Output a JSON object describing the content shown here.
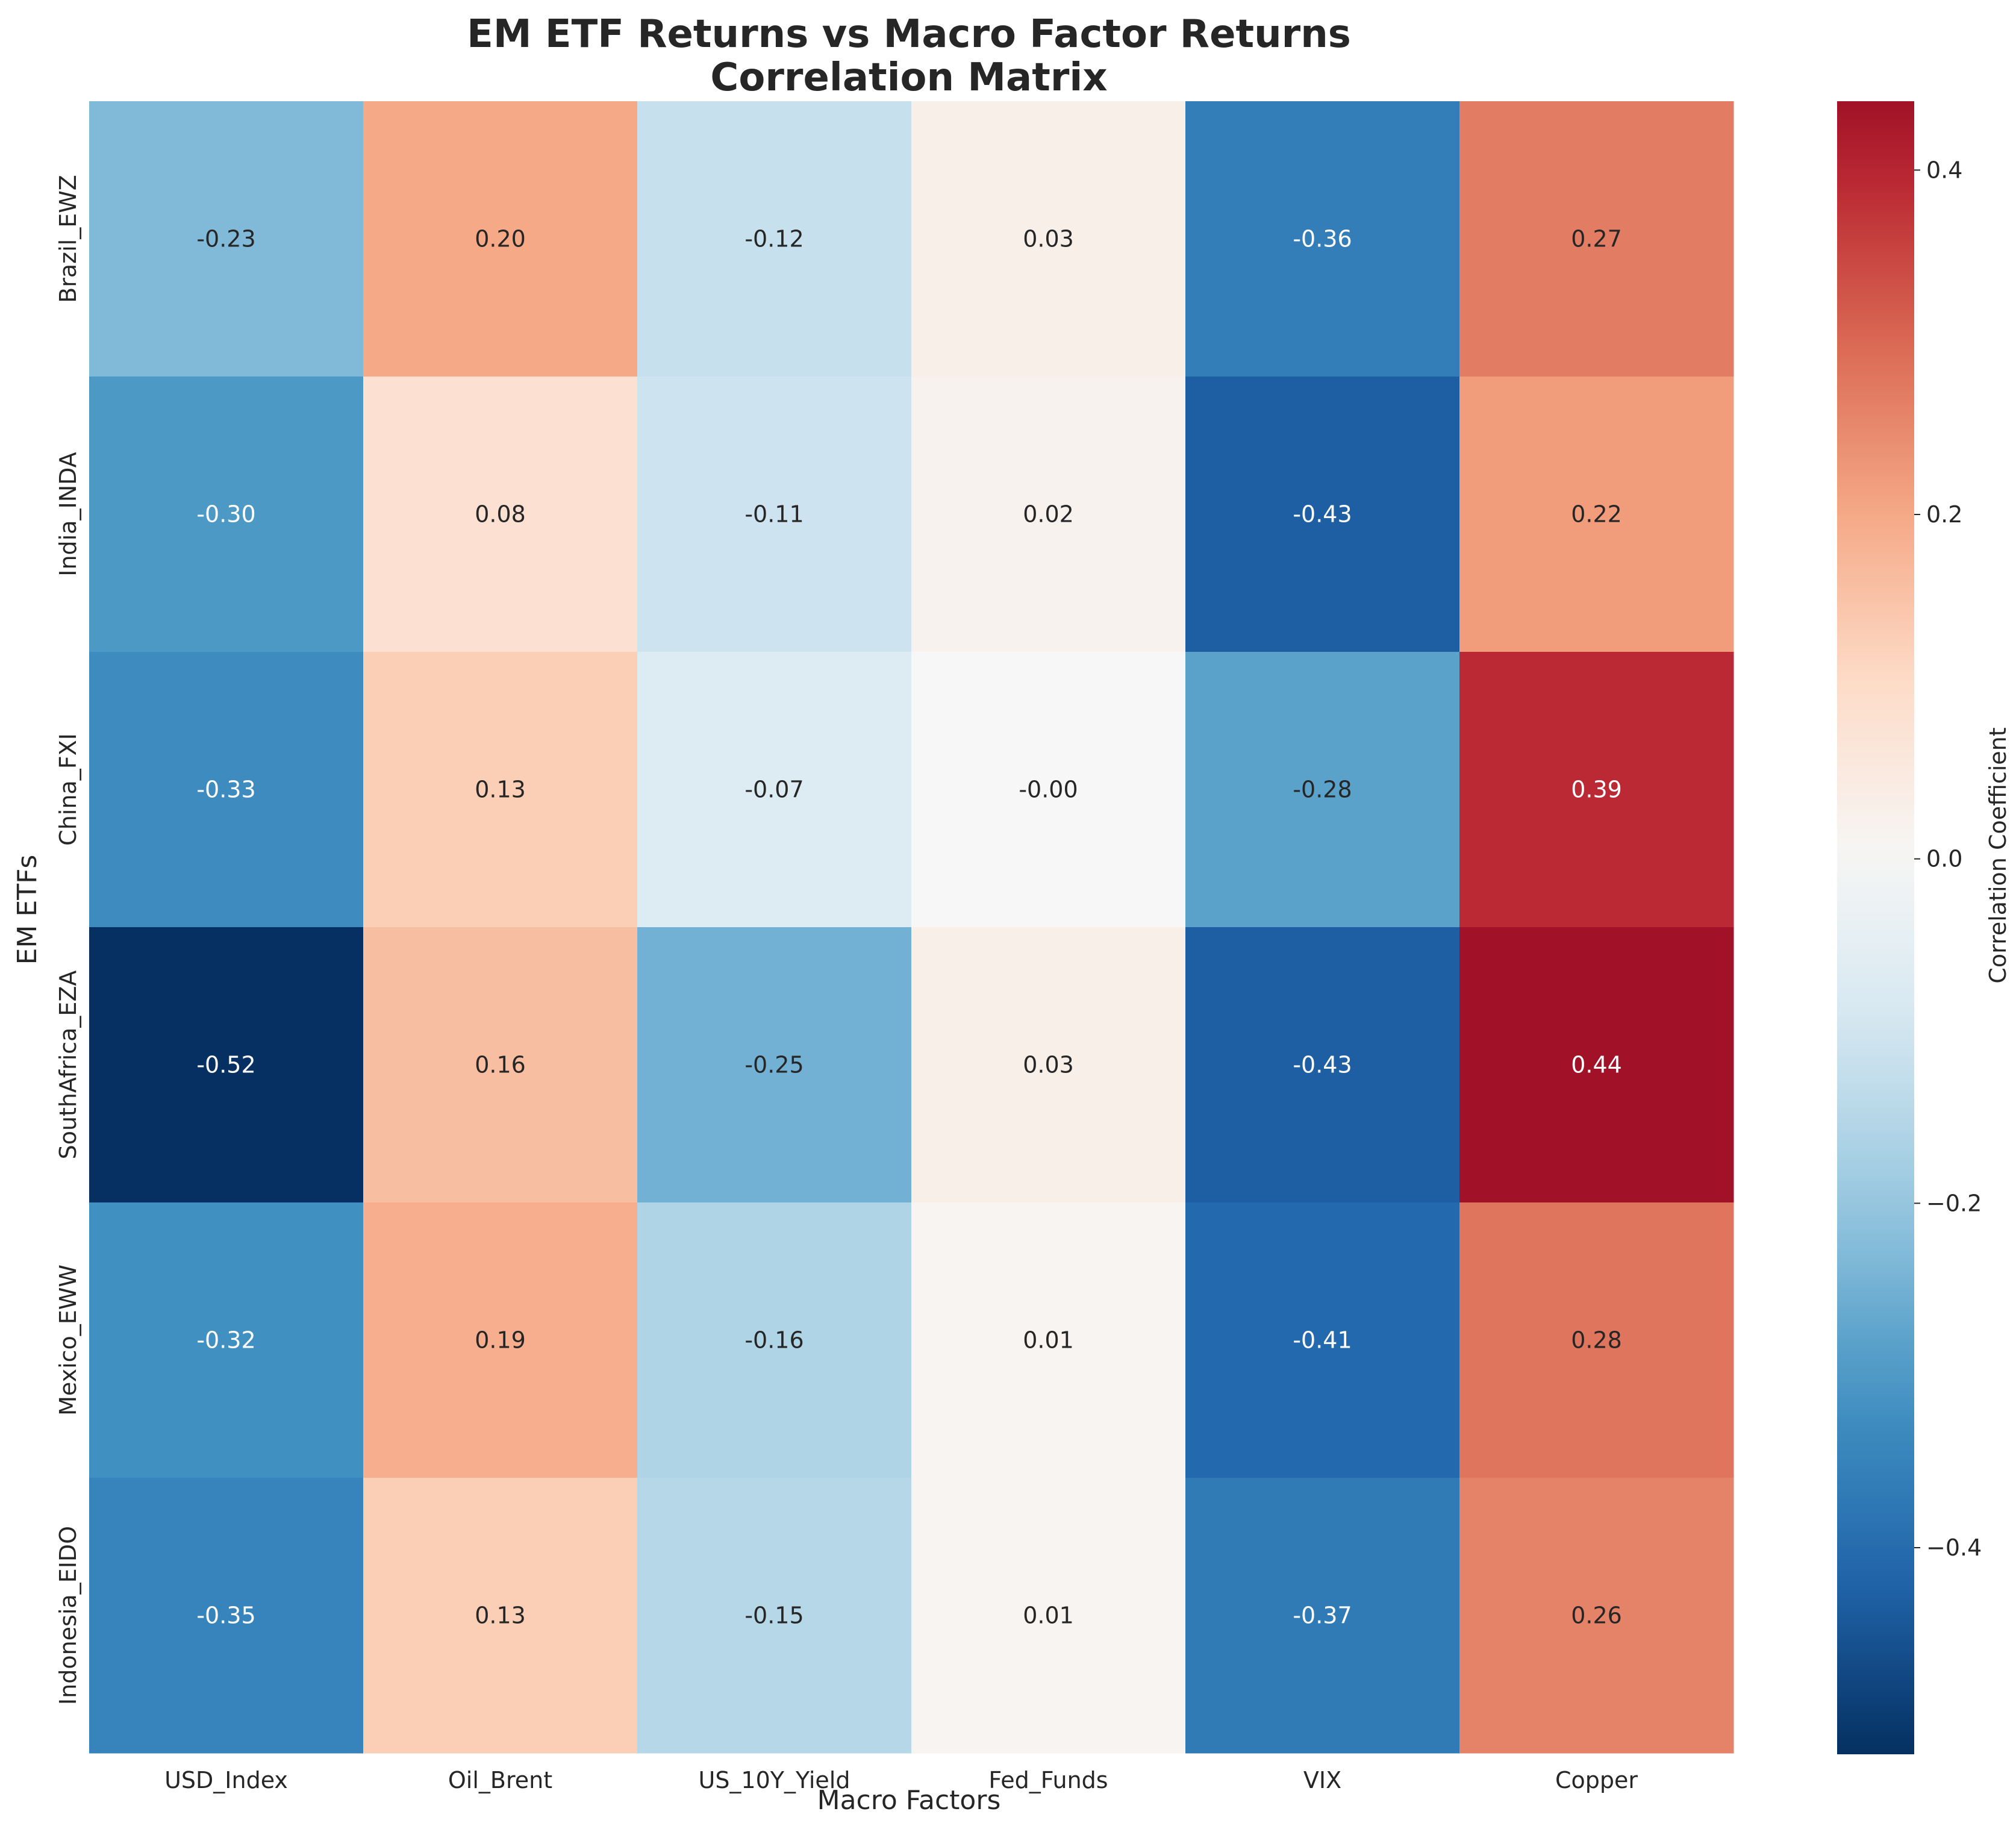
{
  "chart_data": {
    "type": "heatmap",
    "title": "EM ETF Returns vs Macro Factor Returns",
    "subtitle": "Correlation Matrix",
    "xlabel": "Macro Factors",
    "ylabel": "EM ETFs",
    "x_categories": [
      "USD_Index",
      "Oil_Brent",
      "US_10Y_Yield",
      "Fed_Funds",
      "VIX",
      "Copper"
    ],
    "y_categories": [
      "Brazil_EWZ",
      "India_INDA",
      "China_FXI",
      "SouthAfrica_EZA",
      "Mexico_EWW",
      "Indonesia_EIDO"
    ],
    "values": [
      [
        -0.23,
        0.2,
        -0.12,
        0.03,
        -0.36,
        0.27
      ],
      [
        -0.3,
        0.08,
        -0.11,
        0.02,
        -0.43,
        0.22
      ],
      [
        -0.33,
        0.13,
        -0.07,
        -0.0,
        -0.28,
        0.39
      ],
      [
        -0.52,
        0.16,
        -0.25,
        0.03,
        -0.43,
        0.44
      ],
      [
        -0.32,
        0.19,
        -0.16,
        0.01,
        -0.41,
        0.28
      ],
      [
        -0.35,
        0.13,
        -0.15,
        0.01,
        -0.37,
        0.26
      ]
    ],
    "value_labels": [
      [
        "-0.23",
        "0.20",
        "-0.12",
        "0.03",
        "-0.36",
        "0.27"
      ],
      [
        "-0.30",
        "0.08",
        "-0.11",
        "0.02",
        "-0.43",
        "0.22"
      ],
      [
        "-0.33",
        "0.13",
        "-0.07",
        "-0.00",
        "-0.28",
        "0.39"
      ],
      [
        "-0.52",
        "0.16",
        "-0.25",
        "0.03",
        "-0.43",
        "0.44"
      ],
      [
        "-0.32",
        "0.19",
        "-0.16",
        "0.01",
        "-0.41",
        "0.28"
      ],
      [
        "-0.35",
        "0.13",
        "-0.15",
        "0.01",
        "-0.37",
        "0.26"
      ]
    ],
    "colormap": "RdBu_r",
    "vmin": -0.52,
    "vmax": 0.44,
    "colorbar": {
      "label": "Correlation Coefficient",
      "ticks": [
        0.4,
        0.2,
        0.0,
        -0.2,
        -0.4
      ],
      "tick_labels": [
        "0.4",
        "0.2",
        "0.0",
        "−0.2",
        "−0.4"
      ]
    },
    "grid": false,
    "legend": "colorbar-right"
  }
}
